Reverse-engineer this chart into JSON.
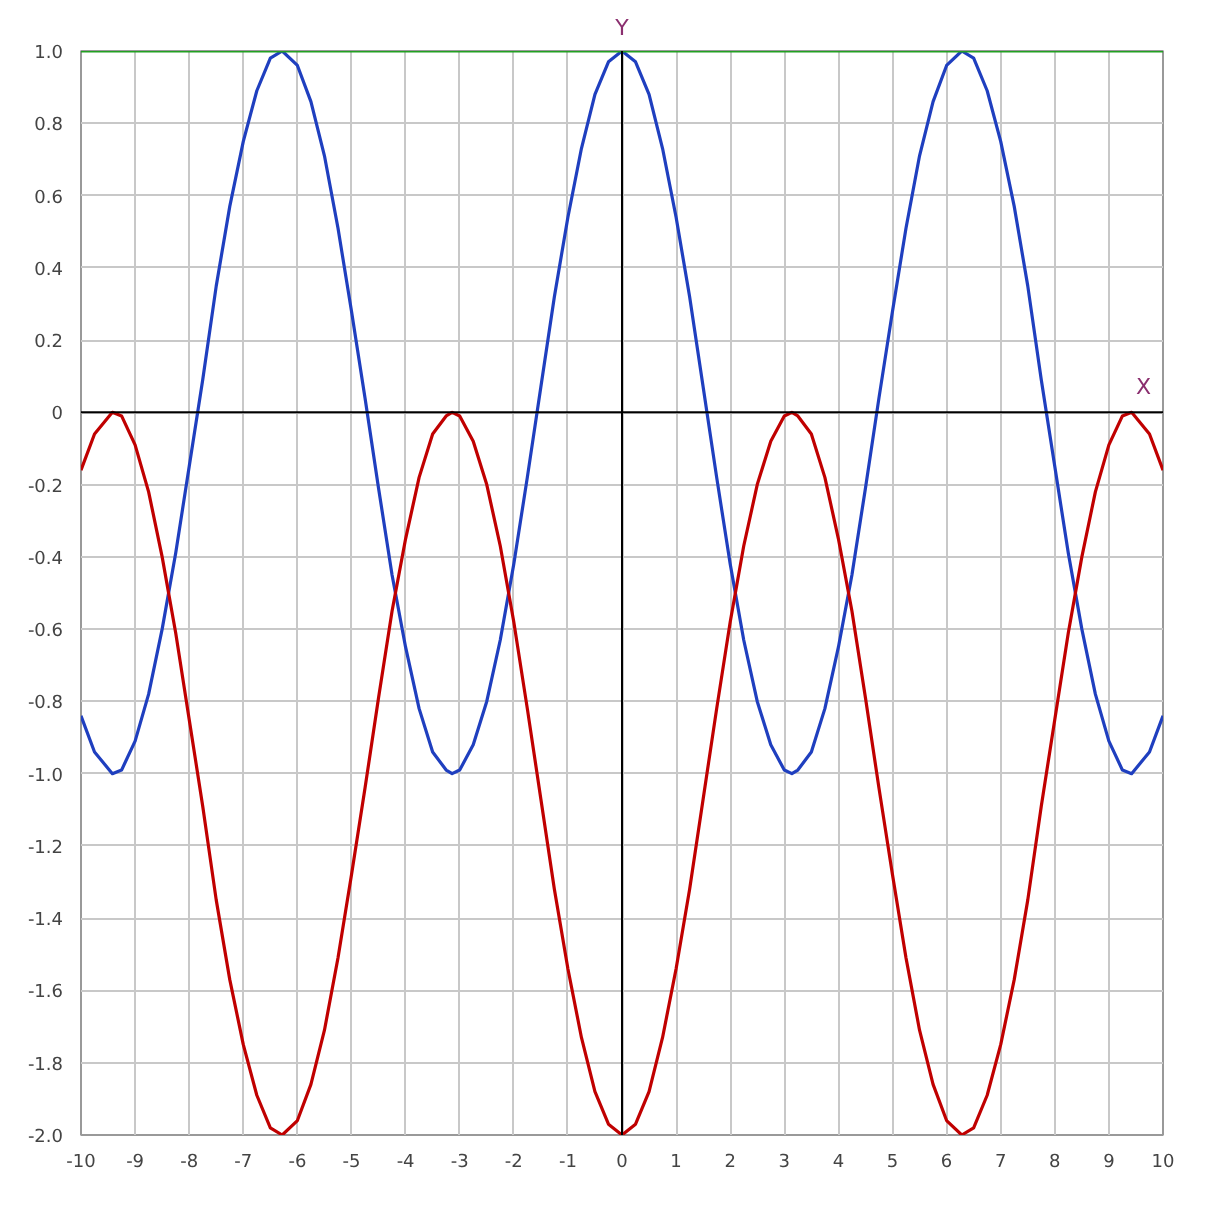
{
  "chart_data": {
    "type": "line",
    "xlabel": "X",
    "ylabel": "Y",
    "x": [
      -10,
      -9.75,
      -9.42,
      -9.25,
      -9,
      -8.75,
      -8.5,
      -8.25,
      -8,
      -7.75,
      -7.5,
      -7.25,
      -7,
      -6.75,
      -6.5,
      -6.28,
      -6,
      -5.75,
      -5.5,
      -5.25,
      -5,
      -4.75,
      -4.5,
      -4.25,
      -4,
      -3.75,
      -3.5,
      -3.25,
      -3.14,
      -3,
      -2.75,
      -2.5,
      -2.25,
      -2,
      -1.75,
      -1.5,
      -1.25,
      -1,
      -0.75,
      -0.5,
      -0.25,
      0,
      0.25,
      0.5,
      0.75,
      1,
      1.25,
      1.5,
      1.75,
      2,
      2.25,
      2.5,
      2.75,
      3,
      3.14,
      3.25,
      3.5,
      3.75,
      4,
      4.25,
      4.5,
      4.75,
      5,
      5.25,
      5.5,
      5.75,
      6,
      6.28,
      6.5,
      6.75,
      7,
      7.25,
      7.5,
      7.75,
      8,
      8.25,
      8.5,
      8.75,
      9,
      9.25,
      9.42,
      9.75,
      10
    ],
    "series": [
      {
        "color": "#1f3fbf",
        "values": [
          -0.84,
          -0.94,
          -1,
          -0.99,
          -0.91,
          -0.78,
          -0.6,
          -0.39,
          -0.15,
          0.09,
          0.35,
          0.57,
          0.75,
          0.89,
          0.98,
          1,
          0.96,
          0.86,
          0.71,
          0.51,
          0.28,
          0.04,
          -0.21,
          -0.45,
          -0.65,
          -0.82,
          -0.94,
          -0.99,
          -1,
          -0.99,
          -0.92,
          -0.8,
          -0.63,
          -0.42,
          -0.18,
          0.07,
          0.32,
          0.54,
          0.73,
          0.88,
          0.97,
          1,
          0.97,
          0.88,
          0.73,
          0.54,
          0.32,
          0.07,
          -0.18,
          -0.42,
          -0.63,
          -0.8,
          -0.92,
          -0.99,
          -1,
          -0.99,
          -0.94,
          -0.82,
          -0.65,
          -0.45,
          -0.21,
          0.04,
          0.28,
          0.51,
          0.71,
          0.86,
          0.96,
          1,
          0.98,
          0.89,
          0.75,
          0.57,
          0.35,
          0.09,
          -0.15,
          -0.39,
          -0.6,
          -0.78,
          -0.91,
          -0.99,
          -1,
          -0.94,
          -0.84
        ]
      },
      {
        "color": "#c00000",
        "values": [
          -0.16,
          -0.06,
          0,
          -0.01,
          -0.09,
          -0.22,
          -0.4,
          -0.61,
          -0.85,
          -1.09,
          -1.35,
          -1.57,
          -1.75,
          -1.89,
          -1.98,
          -2,
          -1.96,
          -1.86,
          -1.71,
          -1.51,
          -1.28,
          -1.04,
          -0.79,
          -0.55,
          -0.35,
          -0.18,
          -0.06,
          -0.01,
          0,
          -0.01,
          -0.08,
          -0.2,
          -0.37,
          -0.58,
          -0.82,
          -1.07,
          -1.32,
          -1.54,
          -1.73,
          -1.88,
          -1.97,
          -2,
          -1.97,
          -1.88,
          -1.73,
          -1.54,
          -1.32,
          -1.07,
          -0.82,
          -0.58,
          -0.37,
          -0.2,
          -0.08,
          -0.01,
          0,
          -0.01,
          -0.06,
          -0.18,
          -0.35,
          -0.55,
          -0.79,
          -1.04,
          -1.28,
          -1.51,
          -1.71,
          -1.86,
          -1.96,
          -2,
          -1.98,
          -1.89,
          -1.75,
          -1.57,
          -1.35,
          -1.09,
          -0.85,
          -0.61,
          -0.4,
          -0.22,
          -0.09,
          -0.01,
          0,
          -0.06,
          -0.16
        ]
      },
      {
        "color": "#22a022",
        "x": [
          -10,
          10
        ],
        "values": [
          1,
          1
        ]
      }
    ],
    "xlim": [
      -10,
      10
    ],
    "ylim": [
      -2,
      1
    ],
    "xticks": [
      -10,
      -9,
      -8,
      -7,
      -6,
      -5,
      -4,
      -3,
      -2,
      -1,
      0,
      1,
      2,
      3,
      4,
      5,
      6,
      7,
      8,
      9,
      10
    ],
    "yticks": [
      {
        "value": -2,
        "label": "-2.0"
      },
      -1.8,
      -1.6,
      -1.4,
      -1.2,
      {
        "value": -1,
        "label": "-1.0"
      },
      -0.8,
      -0.6,
      -0.4,
      -0.2,
      0,
      0.2,
      0.4,
      0.6,
      0.8,
      {
        "value": 1,
        "label": "1.0"
      }
    ],
    "grid": true,
    "marker": "none",
    "line_style": "solid"
  }
}
